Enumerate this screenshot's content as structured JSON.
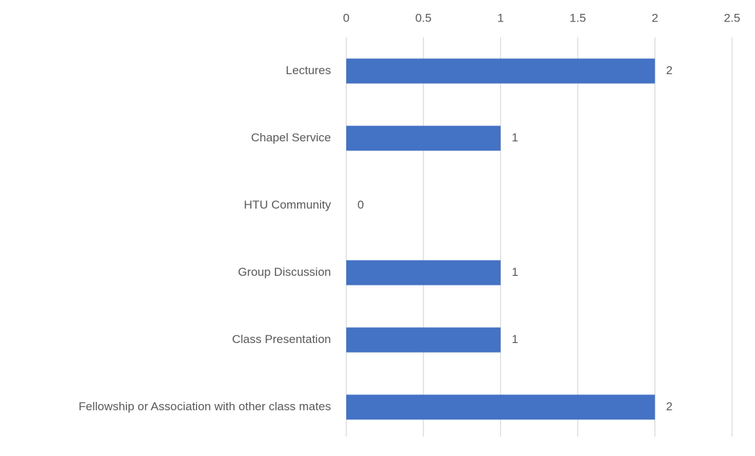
{
  "chart_data": {
    "type": "hbar",
    "categories": [
      "Lectures",
      "Chapel Service",
      "HTU Community",
      "Group Discussion",
      "Class Presentation",
      "Fellowship or Association with other class mates"
    ],
    "values": [
      2,
      1,
      0,
      1,
      1,
      2
    ],
    "color": "#4472c4",
    "xlim": [
      0,
      2.5
    ],
    "xticks": [
      0,
      0.5,
      1,
      1.5,
      2,
      2.5
    ],
    "grid": true,
    "data_labels": true
  }
}
